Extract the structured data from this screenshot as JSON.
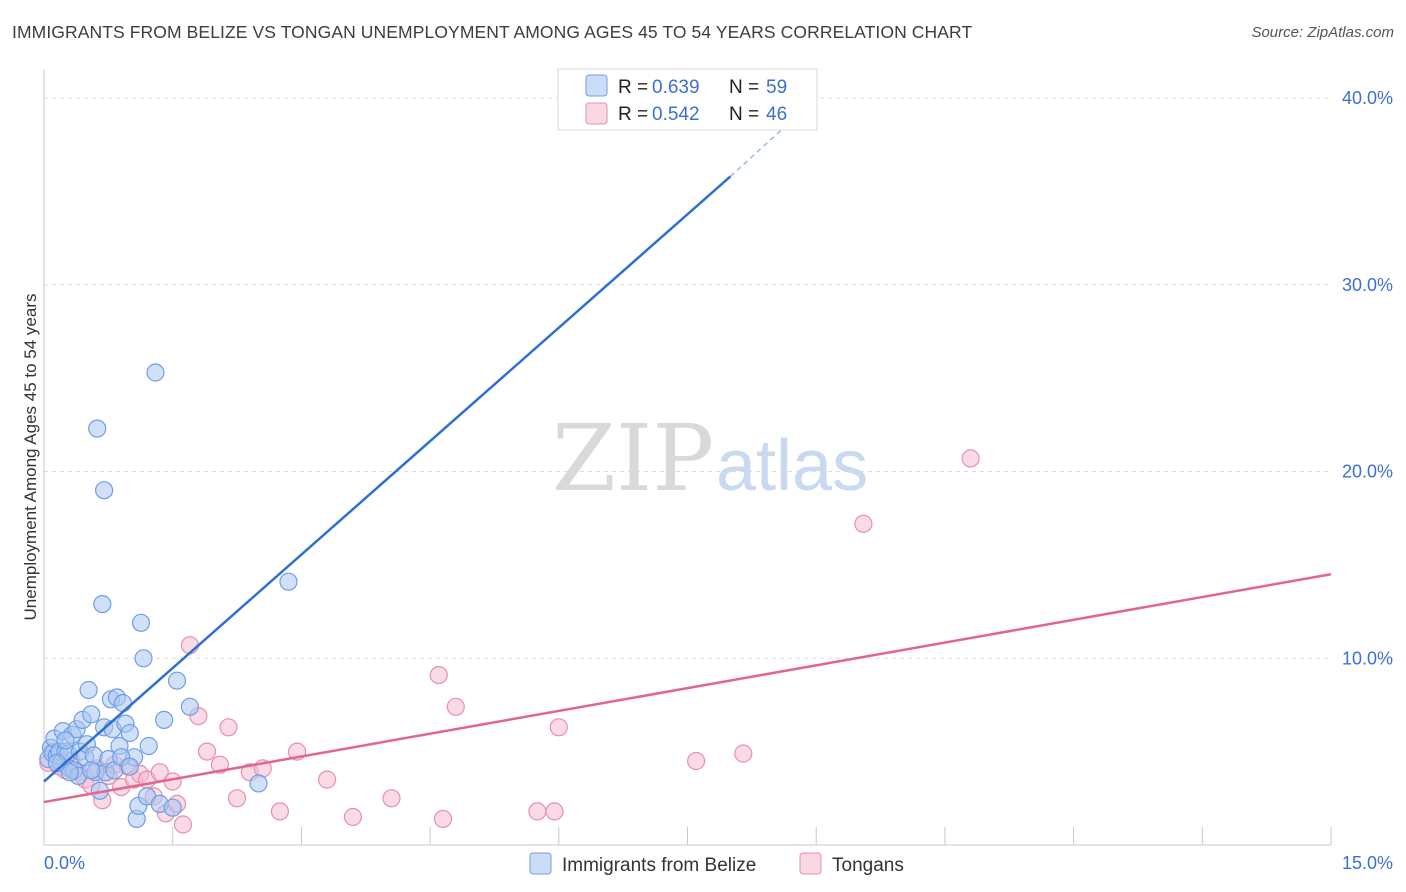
{
  "header": {
    "title": "IMMIGRANTS FROM BELIZE VS TONGAN UNEMPLOYMENT AMONG AGES 45 TO 54 YEARS CORRELATION CHART",
    "source": "Source: ZipAtlas.com"
  },
  "watermark": {
    "zip": "ZIP",
    "atlas": "atlas"
  },
  "colors": {
    "blue_fill": "#a9c6f0",
    "blue_stroke": "#6f9ee6",
    "blue_line": "#2f6fd1",
    "pink_fill": "#f5bcd0",
    "pink_stroke": "#e88fb0",
    "pink_line": "#e0658f",
    "tick_text": "#3d6fd0",
    "grid": "#dcdcdc"
  },
  "legend": {
    "r_label": "R =",
    "n_label": "N =",
    "series": [
      {
        "r": "0.639",
        "n": "59"
      },
      {
        "r": "0.542",
        "n": "46"
      }
    ]
  },
  "chart_data": {
    "type": "scatter",
    "title": "IMMIGRANTS FROM BELIZE VS TONGAN UNEMPLOYMENT AMONG AGES 45 TO 54 YEARS CORRELATION CHART",
    "xlabel": "",
    "ylabel": "Unemployment Among Ages 45 to 54 years",
    "xlim": [
      0,
      15
    ],
    "ylim": [
      0,
      41.5
    ],
    "x_tick_labels": [
      "0.0%",
      "15.0%"
    ],
    "y_ticks": [
      10,
      20,
      30,
      40
    ],
    "y_tick_labels": [
      "10.0%",
      "20.0%",
      "30.0%",
      "40.0%"
    ],
    "legend_position": "bottom-center",
    "series": [
      {
        "name": "Immigrants from Belize",
        "color": "blue",
        "trend": {
          "x": [
            0,
            8.0
          ],
          "y": [
            3.4,
            35.8
          ],
          "dashed_to": [
            9.0,
            40.0
          ]
        },
        "points": [
          [
            0.05,
            4.6
          ],
          [
            0.08,
            5.2
          ],
          [
            0.1,
            4.9
          ],
          [
            0.12,
            5.7
          ],
          [
            0.15,
            4.8
          ],
          [
            0.18,
            5.0
          ],
          [
            0.2,
            4.4
          ],
          [
            0.22,
            6.1
          ],
          [
            0.25,
            5.0
          ],
          [
            0.28,
            4.9
          ],
          [
            0.3,
            4.1
          ],
          [
            0.33,
            5.9
          ],
          [
            0.35,
            4.0
          ],
          [
            0.38,
            6.2
          ],
          [
            0.4,
            3.7
          ],
          [
            0.42,
            5.0
          ],
          [
            0.45,
            6.7
          ],
          [
            0.48,
            4.7
          ],
          [
            0.5,
            5.4
          ],
          [
            0.52,
            8.3
          ],
          [
            0.55,
            7.0
          ],
          [
            0.58,
            4.8
          ],
          [
            0.6,
            3.9
          ],
          [
            0.62,
            22.3
          ],
          [
            0.65,
            2.9
          ],
          [
            0.68,
            12.9
          ],
          [
            0.7,
            6.3
          ],
          [
            0.72,
            3.9
          ],
          [
            0.75,
            4.6
          ],
          [
            0.78,
            7.8
          ],
          [
            0.8,
            6.2
          ],
          [
            0.82,
            4.0
          ],
          [
            0.85,
            7.9
          ],
          [
            0.88,
            5.3
          ],
          [
            0.92,
            7.6
          ],
          [
            0.95,
            6.5
          ],
          [
            1.0,
            6.0
          ],
          [
            1.05,
            4.7
          ],
          [
            1.08,
            1.4
          ],
          [
            1.1,
            2.1
          ],
          [
            1.13,
            11.9
          ],
          [
            1.16,
            10.0
          ],
          [
            1.2,
            2.6
          ],
          [
            1.22,
            5.3
          ],
          [
            1.3,
            25.3
          ],
          [
            1.35,
            2.2
          ],
          [
            1.4,
            6.7
          ],
          [
            1.5,
            2.0
          ],
          [
            1.55,
            8.8
          ],
          [
            1.7,
            7.4
          ],
          [
            0.7,
            19.0
          ],
          [
            2.5,
            3.3
          ],
          [
            2.85,
            14.1
          ],
          [
            0.3,
            3.9
          ],
          [
            0.9,
            4.7
          ],
          [
            0.15,
            4.4
          ],
          [
            0.25,
            5.6
          ],
          [
            0.55,
            4.0
          ],
          [
            1.0,
            4.2
          ]
        ]
      },
      {
        "name": "Tongans",
        "color": "pink",
        "trend": {
          "x": [
            0,
            15
          ],
          "y": [
            2.3,
            14.5
          ]
        },
        "points": [
          [
            0.05,
            4.4
          ],
          [
            0.1,
            5.0
          ],
          [
            0.18,
            4.2
          ],
          [
            0.25,
            4.0
          ],
          [
            0.32,
            4.5
          ],
          [
            0.4,
            3.9
          ],
          [
            0.48,
            3.5
          ],
          [
            0.55,
            3.2
          ],
          [
            0.62,
            4.1
          ],
          [
            0.68,
            2.4
          ],
          [
            0.75,
            3.7
          ],
          [
            0.82,
            4.3
          ],
          [
            0.9,
            3.1
          ],
          [
            0.98,
            4.2
          ],
          [
            1.05,
            3.5
          ],
          [
            1.12,
            3.8
          ],
          [
            1.2,
            3.5
          ],
          [
            1.28,
            2.6
          ],
          [
            1.35,
            3.9
          ],
          [
            1.42,
            1.7
          ],
          [
            1.5,
            3.4
          ],
          [
            1.55,
            2.2
          ],
          [
            1.62,
            1.1
          ],
          [
            1.7,
            10.7
          ],
          [
            1.8,
            6.9
          ],
          [
            1.9,
            5.0
          ],
          [
            2.05,
            4.3
          ],
          [
            2.15,
            6.3
          ],
          [
            2.25,
            2.5
          ],
          [
            2.4,
            3.9
          ],
          [
            2.55,
            4.1
          ],
          [
            2.75,
            1.8
          ],
          [
            2.95,
            5.0
          ],
          [
            3.3,
            3.5
          ],
          [
            3.6,
            1.5
          ],
          [
            4.05,
            2.5
          ],
          [
            4.6,
            9.1
          ],
          [
            4.65,
            1.4
          ],
          [
            4.8,
            7.4
          ],
          [
            5.75,
            1.8
          ],
          [
            5.95,
            1.8
          ],
          [
            6.0,
            6.3
          ],
          [
            7.6,
            4.5
          ],
          [
            8.15,
            4.9
          ],
          [
            9.55,
            17.2
          ],
          [
            10.8,
            20.7
          ]
        ]
      }
    ]
  },
  "bottom_legend": [
    "Immigrants from Belize",
    "Tongans"
  ]
}
